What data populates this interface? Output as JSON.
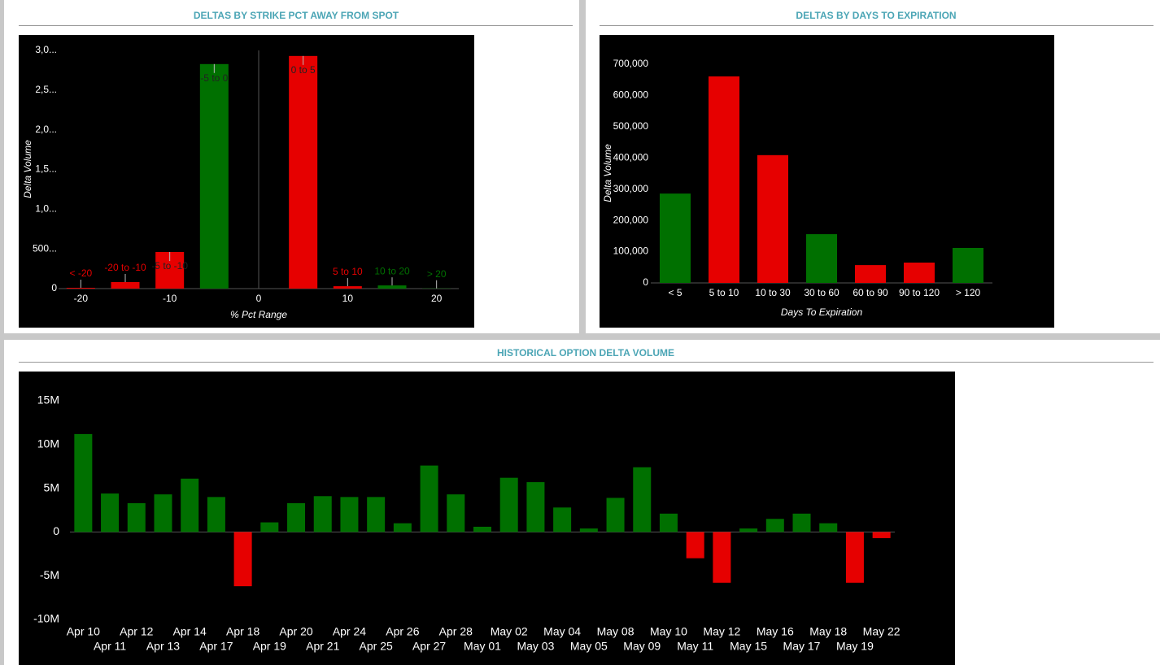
{
  "chart_data": [
    {
      "type": "bar",
      "title": "DELTAS BY STRIKE PCT AWAY FROM SPOT",
      "x_label": "% Pct Range",
      "y_label": "Delta Volume",
      "categories": [
        "< -20",
        "-20 to -10",
        "-5 to -10",
        "-5 to 0",
        "0 to 5",
        "5 to 10",
        "10 to 20",
        "> 20"
      ],
      "x": [
        -20,
        -15,
        -10,
        -5,
        5,
        10,
        15,
        20
      ],
      "values": [
        10,
        82,
        461,
        2828,
        2930,
        30,
        40,
        3
      ],
      "colors": [
        "#e60000",
        "#e60000",
        "#e60000",
        "#007000",
        "#e60000",
        "#e60000",
        "#007000",
        "#007000"
      ],
      "xlim": [
        -22.5,
        22.5
      ],
      "xticks": [
        -20,
        -10,
        0,
        10,
        20
      ],
      "ylim": [
        0,
        3000
      ],
      "yticks": [
        0,
        {
          "value": 500,
          "label": "500..."
        },
        {
          "value": 1000,
          "label": "1,0..."
        },
        {
          "value": 1500,
          "label": "1,5..."
        },
        {
          "value": 2000,
          "label": "2,0..."
        },
        {
          "value": 2500,
          "label": "2,5..."
        },
        {
          "value": 3000,
          "label": "3,0..."
        }
      ],
      "grid": false
    },
    {
      "type": "bar",
      "title": "DELTAS BY DAYS TO EXPIRATION",
      "x_label": "Days To Expiration",
      "y_label": "Delta Volume",
      "categories": [
        "< 5",
        "5 to 10",
        "10 to 30",
        "30 to 60",
        "60 to 90",
        "90 to 120",
        "> 120"
      ],
      "values": [
        286000,
        661000,
        409000,
        156000,
        57000,
        65000,
        112000
      ],
      "colors": [
        "#007000",
        "#e60000",
        "#e60000",
        "#007000",
        "#e60000",
        "#e60000",
        "#007000"
      ],
      "ylim": [
        0,
        700000
      ],
      "yticks": [
        0,
        {
          "value": 100000,
          "label": "100,000"
        },
        {
          "value": 200000,
          "label": "200,000"
        },
        {
          "value": 300000,
          "label": "300,000"
        },
        {
          "value": 400000,
          "label": "400,000"
        },
        {
          "value": 500000,
          "label": "500,000"
        },
        {
          "value": 600000,
          "label": "600,000"
        },
        {
          "value": 700000,
          "label": "700,000"
        }
      ],
      "grid": false
    },
    {
      "type": "bar",
      "title": "HISTORICAL OPTION DELTA VOLUME",
      "categories": [
        "Apr 10",
        "Apr 11",
        "Apr 12",
        "Apr 13",
        "Apr 14",
        "Apr 17",
        "Apr 18",
        "Apr 19",
        "Apr 20",
        "Apr 21",
        "Apr 24",
        "Apr 25",
        "Apr 26",
        "Apr 27",
        "Apr 28",
        "May 01",
        "May 02",
        "May 03",
        "May 04",
        "May 05",
        "May 08",
        "May 09",
        "May 10",
        "May 11",
        "May 12",
        "May 15",
        "May 16",
        "May 17",
        "May 18",
        "May 19",
        "May 22"
      ],
      "values": [
        11200000,
        4400000,
        3300000,
        4300000,
        6100000,
        4000000,
        -6200000,
        1100000,
        3300000,
        4100000,
        4000000,
        4000000,
        1000000,
        7600000,
        4300000,
        600000,
        6200000,
        5700000,
        2800000,
        400000,
        3900000,
        7400000,
        2100000,
        -3000000,
        -5800000,
        400000,
        1500000,
        2100000,
        1000000,
        -5800000,
        -700000
      ],
      "colors": [
        "#007000",
        "#007000",
        "#007000",
        "#007000",
        "#007000",
        "#007000",
        "#e60000",
        "#007000",
        "#007000",
        "#007000",
        "#007000",
        "#007000",
        "#007000",
        "#007000",
        "#007000",
        "#007000",
        "#007000",
        "#007000",
        "#007000",
        "#007000",
        "#007000",
        "#007000",
        "#007000",
        "#e60000",
        "#e60000",
        "#007000",
        "#007000",
        "#007000",
        "#007000",
        "#e60000",
        "#e60000"
      ],
      "ylim": [
        -10000000,
        15000000
      ],
      "yticks": [
        {
          "value": -10000000,
          "label": "-10M"
        },
        {
          "value": -5000000,
          "label": "-5M"
        },
        0,
        {
          "value": 5000000,
          "label": "5M"
        },
        {
          "value": 10000000,
          "label": "10M"
        },
        {
          "value": 15000000,
          "label": "15M"
        }
      ],
      "grid": false
    }
  ]
}
